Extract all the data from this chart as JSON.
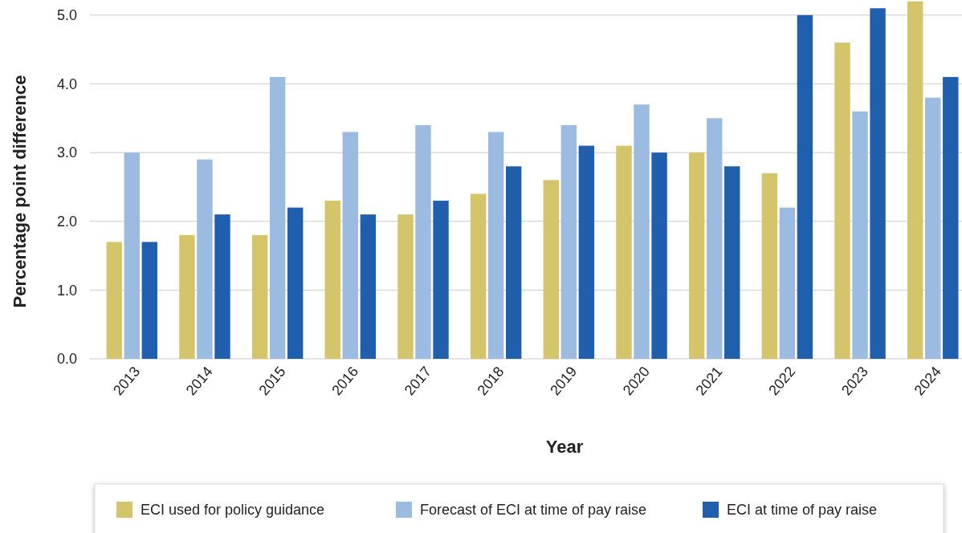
{
  "chart_data": {
    "type": "bar",
    "xlabel": "Year",
    "ylabel": "Percentage point difference",
    "categories": [
      "2013",
      "2014",
      "2015",
      "2016",
      "2017",
      "2018",
      "2019",
      "2020",
      "2021",
      "2022",
      "2023",
      "2024"
    ],
    "series": [
      {
        "name": "ECI used for policy guidance",
        "color": "#d4c46a",
        "values": [
          1.7,
          1.8,
          1.8,
          2.3,
          2.1,
          2.4,
          2.6,
          3.1,
          3.0,
          2.7,
          4.6,
          5.2
        ]
      },
      {
        "name": "Forecast of ECI at time of pay raise",
        "color": "#9bbbe0",
        "values": [
          3.0,
          2.9,
          4.1,
          3.3,
          3.4,
          3.3,
          3.4,
          3.7,
          3.5,
          2.2,
          3.6,
          3.8
        ]
      },
      {
        "name": "ECI at time of pay raise",
        "color": "#1f5fad",
        "values": [
          1.7,
          2.1,
          2.2,
          2.1,
          2.3,
          2.8,
          3.1,
          3.0,
          2.8,
          5.0,
          5.1,
          4.1
        ]
      }
    ],
    "ylim": [
      0,
      5.22
    ],
    "yticks": [
      {
        "value": 0,
        "label": "0.0"
      },
      {
        "value": 1,
        "label": "1.0"
      },
      {
        "value": 2,
        "label": "2.0"
      },
      {
        "value": 3,
        "label": "3.0"
      },
      {
        "value": 4,
        "label": "4.0"
      },
      {
        "value": 5,
        "label": "5.0"
      }
    ],
    "grid": "y",
    "legend": "bottom"
  }
}
